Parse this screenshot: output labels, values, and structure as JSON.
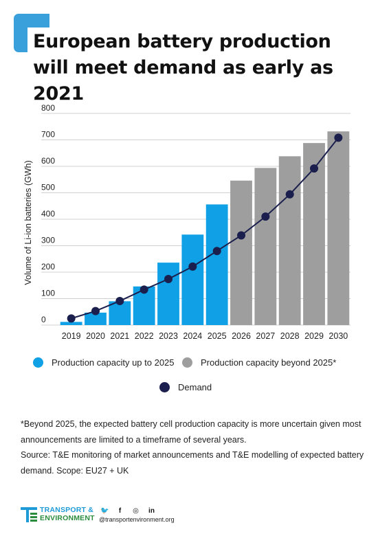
{
  "title": "European battery production will meet demand as early as 2021",
  "colors": {
    "accent": "#3aa0dc",
    "production_to_2025": "#0fa0e6",
    "production_beyond_2025": "#9e9e9e",
    "demand": "#1a1f4d",
    "grid": "#d0d0d0"
  },
  "chart_data": {
    "type": "bar",
    "ylabel": "Volume of Li-ion batteries (GWh)",
    "xlabel": "",
    "ylim": [
      0,
      800
    ],
    "yticks": [
      0,
      100,
      200,
      300,
      400,
      500,
      600,
      700,
      800
    ],
    "grid": true,
    "categories": [
      "2019",
      "2020",
      "2021",
      "2022",
      "2023",
      "2024",
      "2025",
      "2026",
      "2027",
      "2028",
      "2029",
      "2030"
    ],
    "series": [
      {
        "name": "Production capacity up to 2025",
        "kind": "bar",
        "values": [
          12,
          47,
          90,
          146,
          236,
          342,
          456,
          null,
          null,
          null,
          null,
          null
        ]
      },
      {
        "name": "Production capacity beyond 2025*",
        "kind": "bar",
        "values": [
          null,
          null,
          null,
          null,
          null,
          null,
          null,
          546,
          594,
          638,
          688,
          732
        ]
      },
      {
        "name": "Demand",
        "kind": "line",
        "values": [
          25,
          53,
          91,
          134,
          174,
          221,
          280,
          339,
          410,
          494,
          592,
          708
        ]
      }
    ],
    "legend_position": "bottom"
  },
  "legend": {
    "production_to_2025": "Production capacity up to 2025",
    "production_beyond_2025": "Production capacity beyond 2025*",
    "demand": "Demand"
  },
  "footnote": {
    "note": "*Beyond 2025, the expected battery cell production capacity is more uncertain given most announcements are limited to a timeframe of several years.",
    "source": "Source: T&E monitoring of market announcements and T&E modelling of expected battery demand. Scope: EU27 + UK"
  },
  "footer": {
    "logo_line1": "TRANSPORT &",
    "logo_line2": "ENVIRONMENT",
    "website": "@transportenvironment.org",
    "social_icons": [
      "twitter-icon",
      "facebook-icon",
      "instagram-icon",
      "linkedin-icon"
    ]
  }
}
